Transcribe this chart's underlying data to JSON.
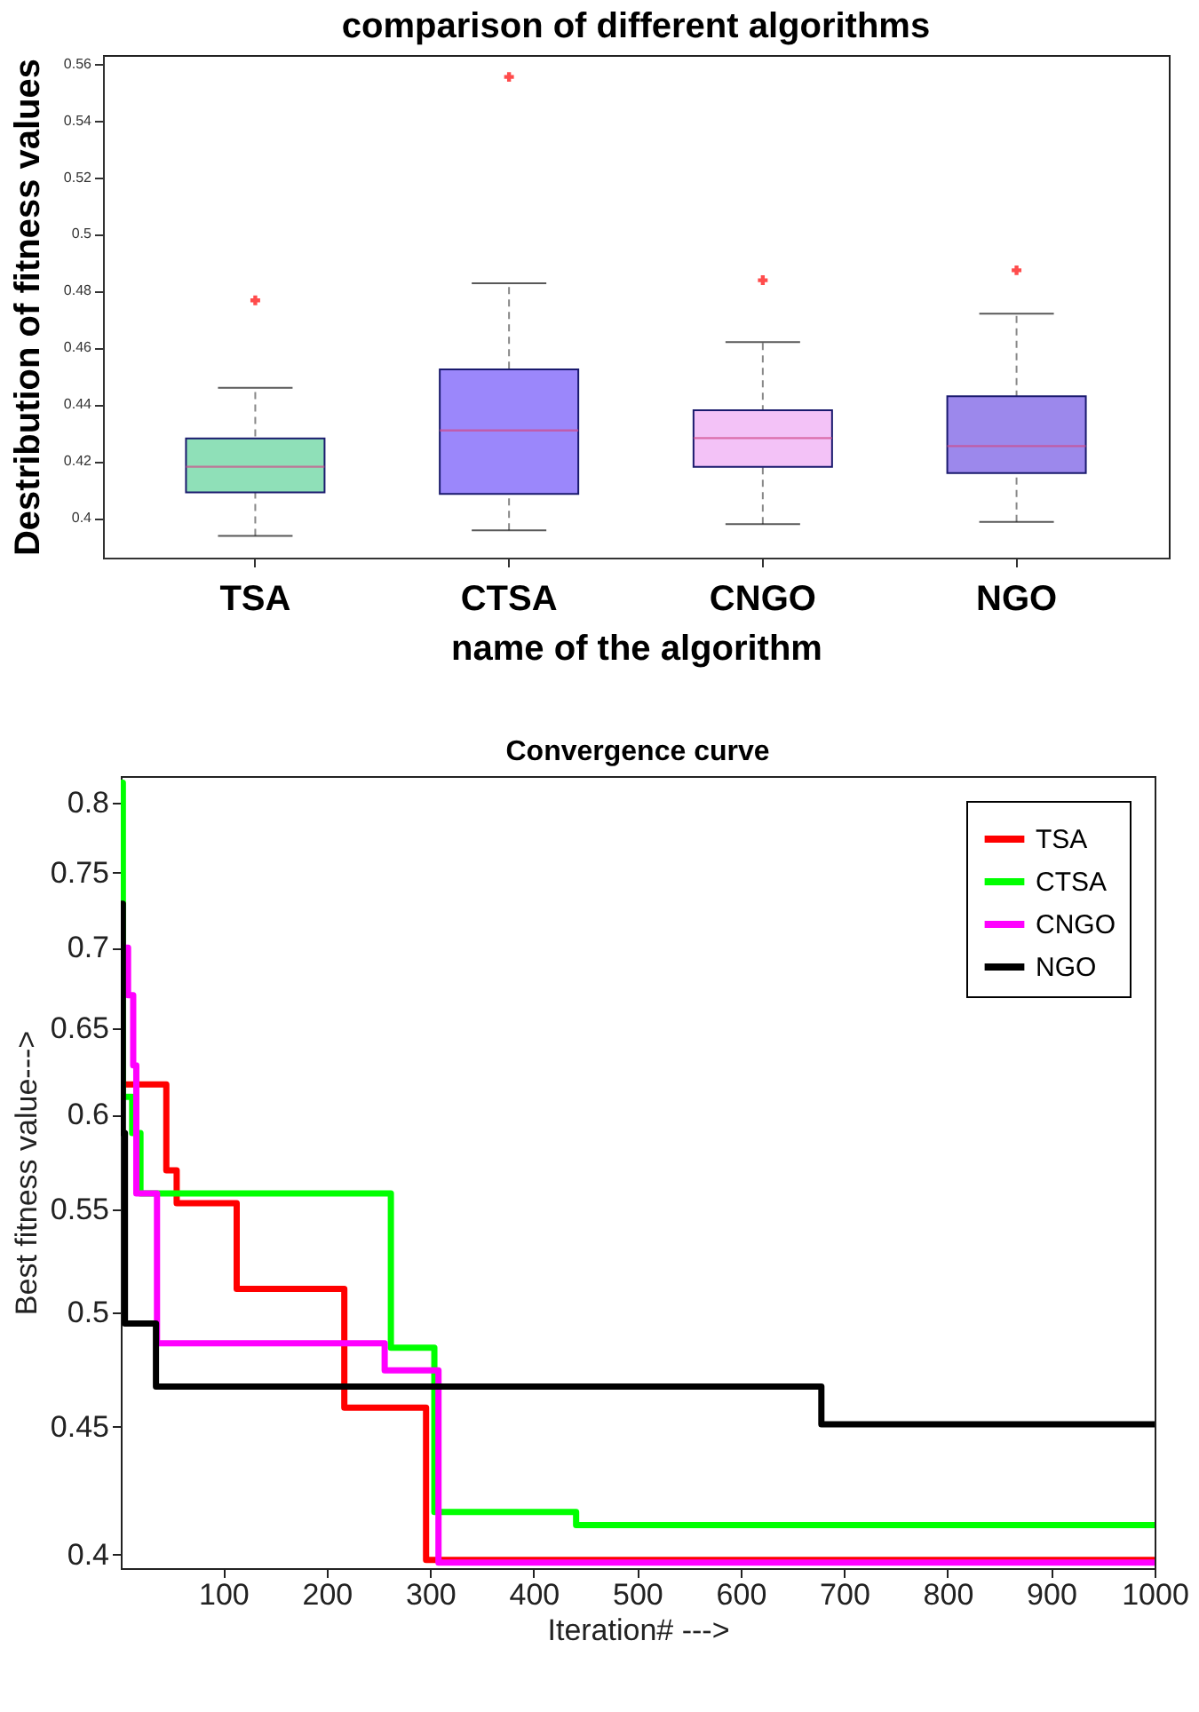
{
  "chart_data": [
    {
      "type": "box",
      "title": "comparison of different algorithms",
      "xlabel": "name of the algorithm",
      "ylabel": "Destribution of fitness values",
      "categories": [
        "TSA",
        "CTSA",
        "CNGO",
        "NGO"
      ],
      "colors": [
        "#8fe0b8",
        "#9b87fb",
        "#f3c2f7",
        "#9c88ec"
      ],
      "boxes": [
        {
          "low": 0.3937,
          "q1": 0.409,
          "median": 0.418,
          "q3": 0.428,
          "high": 0.4458,
          "outliers": [
            0.4766
          ]
        },
        {
          "low": 0.3956,
          "q1": 0.4084,
          "median": 0.4308,
          "q3": 0.4523,
          "high": 0.4826,
          "outliers": [
            0.5553
          ]
        },
        {
          "low": 0.3978,
          "q1": 0.418,
          "median": 0.4281,
          "q3": 0.4379,
          "high": 0.4619,
          "outliers": [
            0.4837
          ]
        },
        {
          "low": 0.3986,
          "q1": 0.4158,
          "median": 0.4253,
          "q3": 0.4428,
          "high": 0.4719,
          "outliers": [
            0.4872
          ]
        }
      ],
      "ylim": [
        0.386,
        0.563
      ],
      "yticks": [
        0.4,
        0.42,
        0.44,
        0.46,
        0.48,
        0.5,
        0.52,
        0.54,
        0.56
      ]
    },
    {
      "type": "step",
      "title": "Convergence curve",
      "xlabel": "Iteration# --->",
      "ylabel": "Best fitness value--->",
      "log": "y",
      "xlim": [
        1,
        1000
      ],
      "xticks": [
        100,
        200,
        300,
        400,
        500,
        600,
        700,
        800,
        900,
        1000
      ],
      "ylim": [
        0.395,
        0.82
      ],
      "yticks": [
        0.4,
        0.45,
        0.5,
        0.55,
        0.6,
        0.65,
        0.7,
        0.75,
        0.8
      ],
      "legend": "top right",
      "line_style": "solid",
      "series": [
        {
          "name": "TSA",
          "color": "#ff0000",
          "x": [
            1,
            45,
            50,
            55,
            113,
            217,
            296,
            1000
          ],
          "values": [
            0.617,
            0.57,
            0.57,
            0.553,
            0.511,
            0.458,
            0.398,
            0.398
          ]
        },
        {
          "name": "CTSA",
          "color": "#00ff00",
          "x": [
            1,
            3,
            12,
            20,
            262,
            304,
            441,
            1000
          ],
          "values": [
            0.815,
            0.61,
            0.59,
            0.558,
            0.484,
            0.416,
            0.411,
            0.411
          ]
        },
        {
          "name": "CNGO",
          "color": "#ff00ff",
          "x": [
            1,
            8,
            13,
            16,
            36,
            256,
            308,
            1000
          ],
          "values": [
            0.7,
            0.67,
            0.628,
            0.558,
            0.486,
            0.474,
            0.397,
            0.397
          ]
        },
        {
          "name": "NGO",
          "color": "#000000",
          "x": [
            1,
            3,
            5,
            35,
            678,
            1000
          ],
          "values": [
            0.729,
            0.59,
            0.495,
            0.467,
            0.451,
            0.451
          ]
        }
      ]
    }
  ]
}
